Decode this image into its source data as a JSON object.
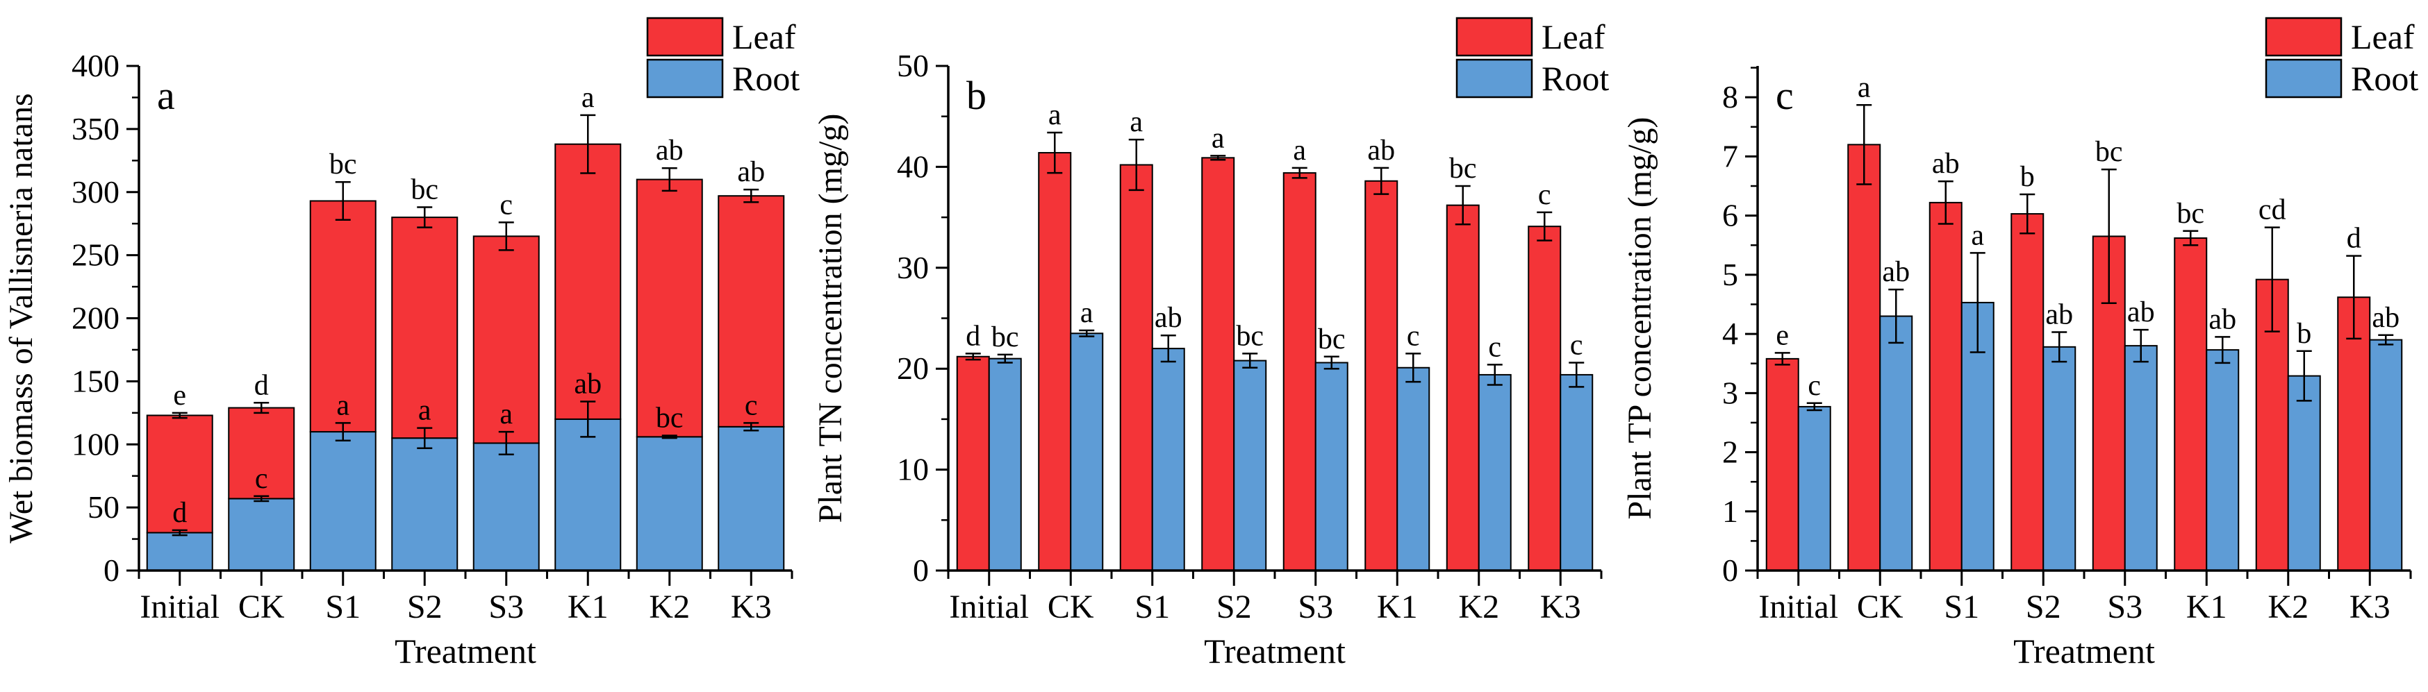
{
  "figure_title": "",
  "colors": {
    "leaf": "#f43438",
    "root": "#5e9cd6",
    "axis": "#000000",
    "background": "#ffffff"
  },
  "legend": {
    "leaf_label": "Leaf",
    "root_label": "Root"
  },
  "chart_data": [
    {
      "id": "a",
      "type": "bar",
      "mode": "stacked",
      "panel_label": "a",
      "ylabel": "Wet biomass of Vallisneria natans",
      "xlabel": "Treatment",
      "categories": [
        "Initial",
        "CK",
        "S1",
        "S2",
        "S3",
        "K1",
        "K2",
        "K3"
      ],
      "ylim": [
        0,
        400
      ],
      "ytick_major_step": 50,
      "ytick_minor_step": 25,
      "ytick_labels": [
        "0",
        "50",
        "100",
        "150",
        "200",
        "250",
        "300",
        "350",
        "400"
      ],
      "legend_position": "top-right",
      "grid": false,
      "series": [
        {
          "name": "Root",
          "values": [
            30,
            57,
            110,
            105,
            101,
            120,
            106,
            114
          ],
          "errors": [
            2,
            2,
            7,
            8,
            9,
            14,
            1,
            3
          ],
          "sig_letters": [
            "d",
            "c",
            "a",
            "a",
            "a",
            "ab",
            "bc",
            "c"
          ]
        },
        {
          "name": "Leaf",
          "values": [
            93,
            72,
            183,
            175,
            164,
            218,
            204,
            183
          ],
          "errors": [
            2,
            4,
            15,
            8,
            11,
            23,
            9,
            5
          ],
          "sig_letters": [
            "e",
            "d",
            "bc",
            "bc",
            "c",
            "a",
            "ab",
            "ab"
          ],
          "note": "error bars and letters apply to stack totals",
          "stack_totals": [
            123,
            129,
            293,
            280,
            265,
            338,
            310,
            297
          ]
        }
      ]
    },
    {
      "id": "b",
      "type": "bar",
      "mode": "grouped",
      "panel_label": "b",
      "ylabel": "Plant TN concentration (mg/g)",
      "xlabel": "Treatment",
      "categories": [
        "Initial",
        "CK",
        "S1",
        "S2",
        "S3",
        "K1",
        "K2",
        "K3"
      ],
      "ylim": [
        0,
        50
      ],
      "ytick_major_step": 10,
      "ytick_minor_step": 5,
      "ytick_labels": [
        "0",
        "10",
        "20",
        "30",
        "40",
        "50"
      ],
      "legend_position": "top-right",
      "grid": false,
      "series": [
        {
          "name": "Leaf",
          "values": [
            21.2,
            41.4,
            40.2,
            40.9,
            39.4,
            38.6,
            36.2,
            34.1
          ],
          "errors": [
            0.3,
            2.0,
            2.5,
            0.2,
            0.5,
            1.3,
            1.9,
            1.4
          ],
          "sig_letters": [
            "d",
            "a",
            "a",
            "a",
            "a",
            "ab",
            "bc",
            "c"
          ]
        },
        {
          "name": "Root",
          "values": [
            21.0,
            23.5,
            22.0,
            20.8,
            20.6,
            20.1,
            19.4,
            19.4
          ],
          "errors": [
            0.4,
            0.3,
            1.3,
            0.7,
            0.6,
            1.4,
            1.0,
            1.2
          ],
          "sig_letters": [
            "bc",
            "a",
            "ab",
            "bc",
            "bc",
            "c",
            "c",
            "c"
          ]
        }
      ]
    },
    {
      "id": "c",
      "type": "bar",
      "mode": "grouped",
      "panel_label": "c",
      "ylabel": "Plant TP concentration (mg/g)",
      "xlabel": "Treatment",
      "categories": [
        "Initial",
        "CK",
        "S1",
        "S2",
        "S3",
        "K1",
        "K2",
        "K3"
      ],
      "ylim": [
        0,
        8.53
      ],
      "ytick_major_step": 1,
      "ytick_minor_step": 0.5,
      "ytick_labels": [
        "0",
        "1",
        "2",
        "3",
        "4",
        "5",
        "6",
        "7",
        "8"
      ],
      "legend_position": "top-right",
      "grid": false,
      "series": [
        {
          "name": "Leaf",
          "values": [
            3.58,
            7.2,
            6.22,
            6.03,
            5.65,
            5.62,
            4.92,
            4.62
          ],
          "errors": [
            0.1,
            0.67,
            0.36,
            0.33,
            1.13,
            0.12,
            0.88,
            0.7
          ],
          "sig_letters": [
            "e",
            "a",
            "ab",
            "b",
            "bc",
            "bc",
            "cd",
            "d"
          ]
        },
        {
          "name": "Root",
          "values": [
            2.77,
            4.3,
            4.53,
            3.78,
            3.8,
            3.73,
            3.29,
            3.9
          ],
          "errors": [
            0.06,
            0.45,
            0.84,
            0.25,
            0.27,
            0.22,
            0.42,
            0.08
          ],
          "sig_letters": [
            "c",
            "ab",
            "a",
            "ab",
            "ab",
            "ab",
            "b",
            "ab"
          ]
        }
      ]
    }
  ]
}
